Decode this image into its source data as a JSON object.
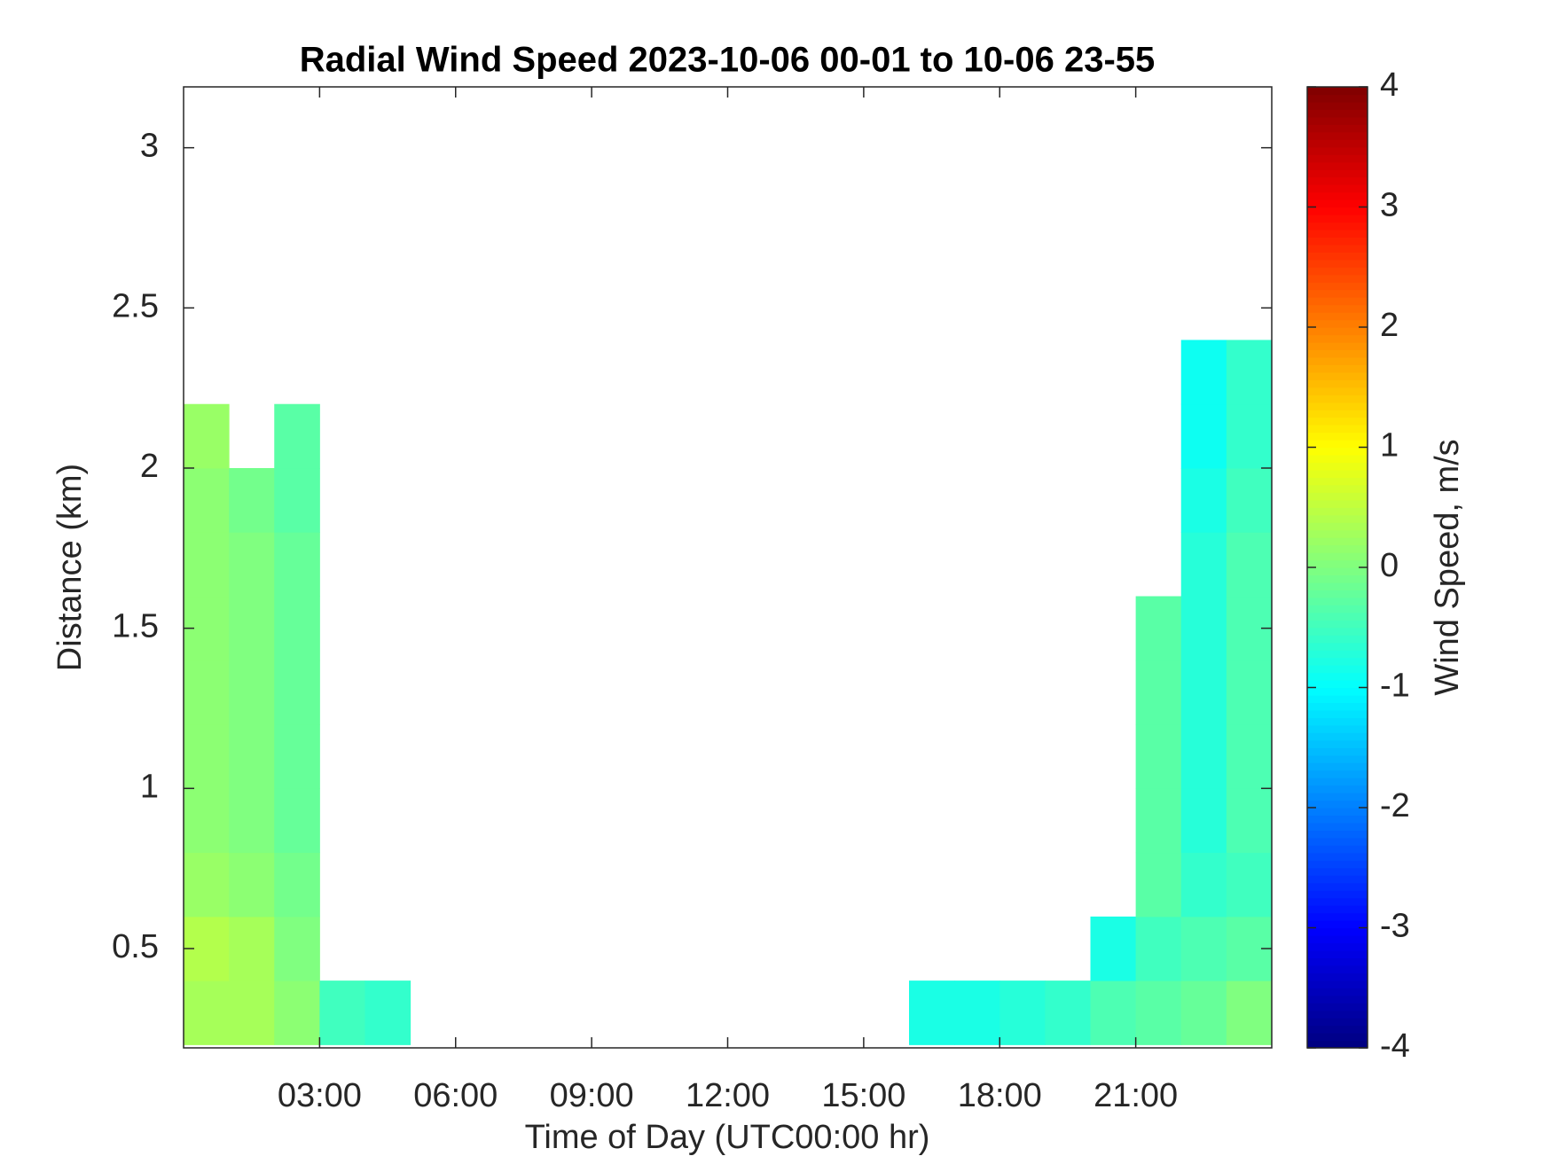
{
  "chart_data": {
    "type": "heatmap",
    "title": "Radial Wind Speed 2023-10-06 00-01 to 10-06 23-55",
    "x_label": "Time of Day (UTC00:00 hr)",
    "y_label": "Distance (km)",
    "colorbar_label": "Wind Speed, m/s",
    "colormap": "jet",
    "x_bins": [
      0,
      1,
      2,
      3,
      4,
      5,
      6,
      7,
      8,
      9,
      10,
      11,
      12,
      13,
      14,
      15,
      16,
      17,
      18,
      19,
      20,
      21,
      22,
      23,
      24
    ],
    "y_bins": [
      0.2,
      0.4,
      0.6,
      0.8,
      1.0,
      1.2,
      1.4,
      1.6,
      1.8,
      2.0,
      2.2,
      2.4
    ],
    "values": [
      [
        0.3,
        0.3,
        0.1,
        -0.5,
        -0.6,
        null,
        null,
        null,
        null,
        null,
        null,
        null,
        null,
        null,
        null,
        null,
        -0.8,
        -0.8,
        -0.7,
        -0.6,
        -0.4,
        -0.3,
        -0.2,
        0
      ],
      [
        0.4,
        0.3,
        0,
        null,
        null,
        null,
        null,
        null,
        null,
        null,
        null,
        null,
        null,
        null,
        null,
        null,
        null,
        null,
        null,
        null,
        -0.8,
        -0.5,
        -0.4,
        -0.3
      ],
      [
        0.2,
        0.1,
        -0.1,
        null,
        null,
        null,
        null,
        null,
        null,
        null,
        null,
        null,
        null,
        null,
        null,
        null,
        null,
        null,
        null,
        null,
        null,
        -0.3,
        -0.6,
        -0.5
      ],
      [
        0.1,
        0,
        -0.2,
        null,
        null,
        null,
        null,
        null,
        null,
        null,
        null,
        null,
        null,
        null,
        null,
        null,
        null,
        null,
        null,
        null,
        null,
        -0.3,
        -0.7,
        -0.4
      ],
      [
        0.1,
        0,
        -0.2,
        null,
        null,
        null,
        null,
        null,
        null,
        null,
        null,
        null,
        null,
        null,
        null,
        null,
        null,
        null,
        null,
        null,
        null,
        -0.3,
        -0.7,
        -0.4
      ],
      [
        0.1,
        0,
        -0.2,
        null,
        null,
        null,
        null,
        null,
        null,
        null,
        null,
        null,
        null,
        null,
        null,
        null,
        null,
        null,
        null,
        null,
        null,
        -0.3,
        -0.7,
        -0.4
      ],
      [
        0.1,
        0,
        -0.2,
        null,
        null,
        null,
        null,
        null,
        null,
        null,
        null,
        null,
        null,
        null,
        null,
        null,
        null,
        null,
        null,
        null,
        null,
        -0.3,
        -0.7,
        -0.4
      ],
      [
        0.1,
        0,
        -0.2,
        null,
        null,
        null,
        null,
        null,
        null,
        null,
        null,
        null,
        null,
        null,
        null,
        null,
        null,
        null,
        null,
        null,
        null,
        null,
        -0.7,
        -0.4
      ],
      [
        0.1,
        -0.1,
        -0.3,
        null,
        null,
        null,
        null,
        null,
        null,
        null,
        null,
        null,
        null,
        null,
        null,
        null,
        null,
        null,
        null,
        null,
        null,
        null,
        -0.8,
        -0.5
      ],
      [
        0.2,
        null,
        -0.3,
        null,
        null,
        null,
        null,
        null,
        null,
        null,
        null,
        null,
        null,
        null,
        null,
        null,
        null,
        null,
        null,
        null,
        null,
        null,
        -0.9,
        -0.6
      ],
      [
        null,
        null,
        null,
        null,
        null,
        null,
        null,
        null,
        null,
        null,
        null,
        null,
        null,
        null,
        null,
        null,
        null,
        null,
        null,
        null,
        null,
        null,
        -0.9,
        -0.6
      ]
    ],
    "xlim": [
      0,
      24
    ],
    "ylim": [
      0.19,
      3.19
    ],
    "clim": [
      -4,
      4
    ],
    "xticks": [
      {
        "value": 3,
        "label": "03:00"
      },
      {
        "value": 6,
        "label": "06:00"
      },
      {
        "value": 9,
        "label": "09:00"
      },
      {
        "value": 12,
        "label": "12:00"
      },
      {
        "value": 15,
        "label": "15:00"
      },
      {
        "value": 18,
        "label": "18:00"
      },
      {
        "value": 21,
        "label": "21:00"
      }
    ],
    "yticks": [
      0.5,
      1,
      1.5,
      2,
      2.5,
      3
    ],
    "cticks": [
      -4,
      -3,
      -2,
      -1,
      0,
      1,
      2,
      3,
      4
    ]
  }
}
